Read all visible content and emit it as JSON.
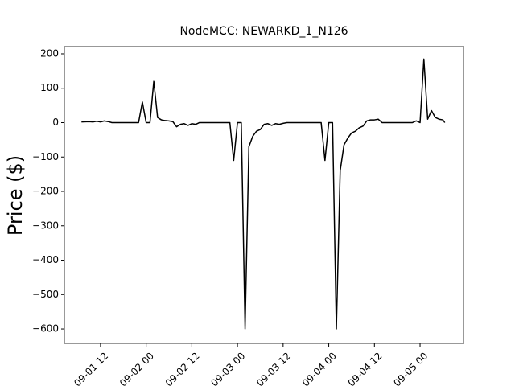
{
  "chart_data": {
    "type": "line",
    "title": "NodeMCC: NEWARKD_1_N126",
    "y_label": "Price ($)",
    "x": [
      "09-01 07:00",
      "09-01 09:00",
      "09-01 10:00",
      "09-01 11:00",
      "09-01 12:00",
      "09-01 13:00",
      "09-01 14:00",
      "09-01 15:00",
      "09-01 22:00",
      "09-01 23:00",
      "09-02 00:00",
      "09-02 01:00",
      "09-02 02:00",
      "09-02 03:00",
      "09-02 04:00",
      "09-02 05:00",
      "09-02 06:00",
      "09-02 07:00",
      "09-02 08:00",
      "09-02 09:00",
      "09-02 10:00",
      "09-02 11:00",
      "09-02 12:00",
      "09-02 13:00",
      "09-02 14:00",
      "09-02 15:00",
      "09-02 16:00",
      "09-02 22:00",
      "09-02 23:00",
      "09-03 00:00",
      "09-03 01:00",
      "09-03 02:00",
      "09-03 03:00",
      "09-03 04:00",
      "09-03 05:00",
      "09-03 06:00",
      "09-03 07:00",
      "09-03 08:00",
      "09-03 09:00",
      "09-03 10:00",
      "09-03 11:00",
      "09-03 12:00",
      "09-03 13:00",
      "09-03 14:00",
      "09-03 22:00",
      "09-03 23:00",
      "09-04 00:00",
      "09-04 01:00",
      "09-04 02:00",
      "09-04 03:00",
      "09-04 04:00",
      "09-04 05:00",
      "09-04 06:00",
      "09-04 07:00",
      "09-04 08:00",
      "09-04 09:00",
      "09-04 10:00",
      "09-04 11:00",
      "09-04 12:00",
      "09-04 13:00",
      "09-04 14:00",
      "09-04 22:00",
      "09-04 23:00",
      "09-05 00:00",
      "09-05 01:00",
      "09-05 02:00",
      "09-05 03:00",
      "09-05 04:00",
      "09-05 05:00",
      "09-05 06:00",
      "09-05 06:30"
    ],
    "series": [
      {
        "name": "Price",
        "color": "#000000",
        "values": [
          2,
          3,
          2,
          4,
          2,
          5,
          3,
          0,
          0,
          60,
          0,
          0,
          120,
          15,
          8,
          6,
          5,
          3,
          -12,
          -5,
          -3,
          -8,
          -3,
          -5,
          0,
          0,
          0,
          0,
          -110,
          0,
          0,
          -600,
          -70,
          -40,
          -25,
          -20,
          -5,
          -3,
          -8,
          -3,
          -5,
          -2,
          0,
          0,
          0,
          -110,
          0,
          0,
          -600,
          -140,
          -65,
          -45,
          -30,
          -25,
          -15,
          -10,
          5,
          8,
          8,
          10,
          0,
          0,
          5,
          0,
          185,
          10,
          35,
          15,
          10,
          8,
          0
        ]
      }
    ],
    "xlim": [
      "09-01 02:30",
      "09-05 11:25"
    ],
    "xticks": [
      {
        "value": "09-01 12:00",
        "label": "09-01 12"
      },
      {
        "value": "09-02 00:00",
        "label": "09-02 00"
      },
      {
        "value": "09-02 12:00",
        "label": "09-02 12"
      },
      {
        "value": "09-03 00:00",
        "label": "09-03 00"
      },
      {
        "value": "09-03 12:00",
        "label": "09-03 12"
      },
      {
        "value": "09-04 00:00",
        "label": "09-04 00"
      },
      {
        "value": "09-04 12:00",
        "label": "09-04 12"
      },
      {
        "value": "09-05 00:00",
        "label": "09-05 00"
      }
    ],
    "ylim": [
      -642,
      221
    ],
    "yticks": [
      {
        "value": -600,
        "label": "−600"
      },
      {
        "value": -500,
        "label": "−500"
      },
      {
        "value": -400,
        "label": "−400"
      },
      {
        "value": -300,
        "label": "−300"
      },
      {
        "value": -200,
        "label": "−200"
      },
      {
        "value": -100,
        "label": "−100"
      },
      0,
      100,
      200
    ],
    "grid": false
  }
}
